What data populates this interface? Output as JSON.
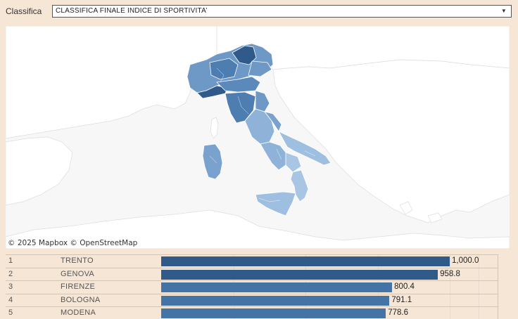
{
  "filter": {
    "label": "Classifica",
    "selected": "CLASSIFICA FINALE INDICE DI SPORTIVITA’"
  },
  "map": {
    "attribution": "© 2025 Mapbox  © OpenStreetMap"
  },
  "ranking": {
    "max_value": 1000,
    "rows": [
      {
        "rank": "1",
        "city": "TRENTO",
        "value": 1000.0,
        "value_label": "1,000.0",
        "color": "#2f5a8a"
      },
      {
        "rank": "2",
        "city": "GENOVA",
        "value": 958.8,
        "value_label": "958.8",
        "color": "#2f5a8a"
      },
      {
        "rank": "3",
        "city": "FIRENZE",
        "value": 800.4,
        "value_label": "800.4",
        "color": "#4473a6"
      },
      {
        "rank": "4",
        "city": "BOLOGNA",
        "value": 791.1,
        "value_label": "791.1",
        "color": "#4473a6"
      },
      {
        "rank": "5",
        "city": "MODENA",
        "value": 778.6,
        "value_label": "778.6",
        "color": "#4473a6"
      }
    ]
  }
}
